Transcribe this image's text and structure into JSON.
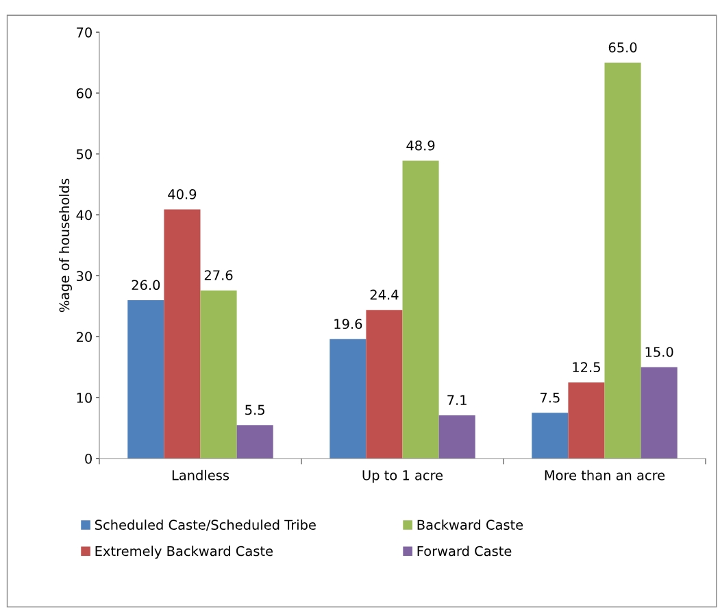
{
  "chart_data": {
    "type": "bar",
    "ylabel": "%age of households",
    "categories": [
      "Landless",
      "Up to 1 acre",
      "More than an acre"
    ],
    "series": [
      {
        "name": "Scheduled Caste/Scheduled Tribe",
        "color": "#4f81bd",
        "values": [
          26.0,
          19.6,
          7.5
        ],
        "value_labels": [
          "26.0",
          "19.6",
          "7.5"
        ]
      },
      {
        "name": "Extremely Backward Caste",
        "color": "#c0504d",
        "values": [
          40.9,
          24.4,
          12.5
        ],
        "value_labels": [
          "40.9",
          "24.4",
          "12.5"
        ]
      },
      {
        "name": "Backward Caste",
        "color": "#9bbb59",
        "values": [
          27.6,
          48.9,
          65.0
        ],
        "value_labels": [
          "27.6",
          "48.9",
          "65.0"
        ]
      },
      {
        "name": "Forward Caste",
        "color": "#8064a2",
        "values": [
          5.5,
          7.1,
          15.0
        ],
        "value_labels": [
          "5.5",
          "7.1",
          "15.0"
        ]
      }
    ],
    "ylim": [
      0,
      70
    ],
    "yticks": [
      0,
      10,
      20,
      30,
      40,
      50,
      60,
      70
    ],
    "grid": false,
    "legend": "bottom"
  }
}
